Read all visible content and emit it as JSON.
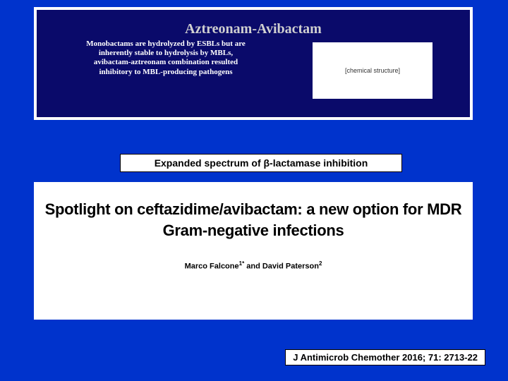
{
  "top": {
    "title": "Aztreonam-Avibactam",
    "body": "Monobactams are hydrolyzed by ESBLs but are inherently stable to hydrolysis by MBLs, avibactam-aztreonam combination resulted inhibitory to MBL-producing pathogens",
    "structure_placeholder": "[chemical structure]"
  },
  "mid": {
    "label": "Expanded spectrum of β-lactamase inhibition"
  },
  "main": {
    "title_line1": "Spotlight on ceftazidime/avibactam: a new option for MDR",
    "title_line2": "Gram-negative infections",
    "author1": "Marco Falcone",
    "sup1": "1*",
    "author_sep": " and ",
    "author2": "David Paterson",
    "sup2": "2"
  },
  "citation": {
    "text": "J Antimicrob Chemother 2016; 71: 2713-22"
  },
  "colors": {
    "slide_bg": "#0033cc",
    "top_box_bg": "#0a0a6a",
    "white": "#ffffff",
    "black": "#000000"
  }
}
